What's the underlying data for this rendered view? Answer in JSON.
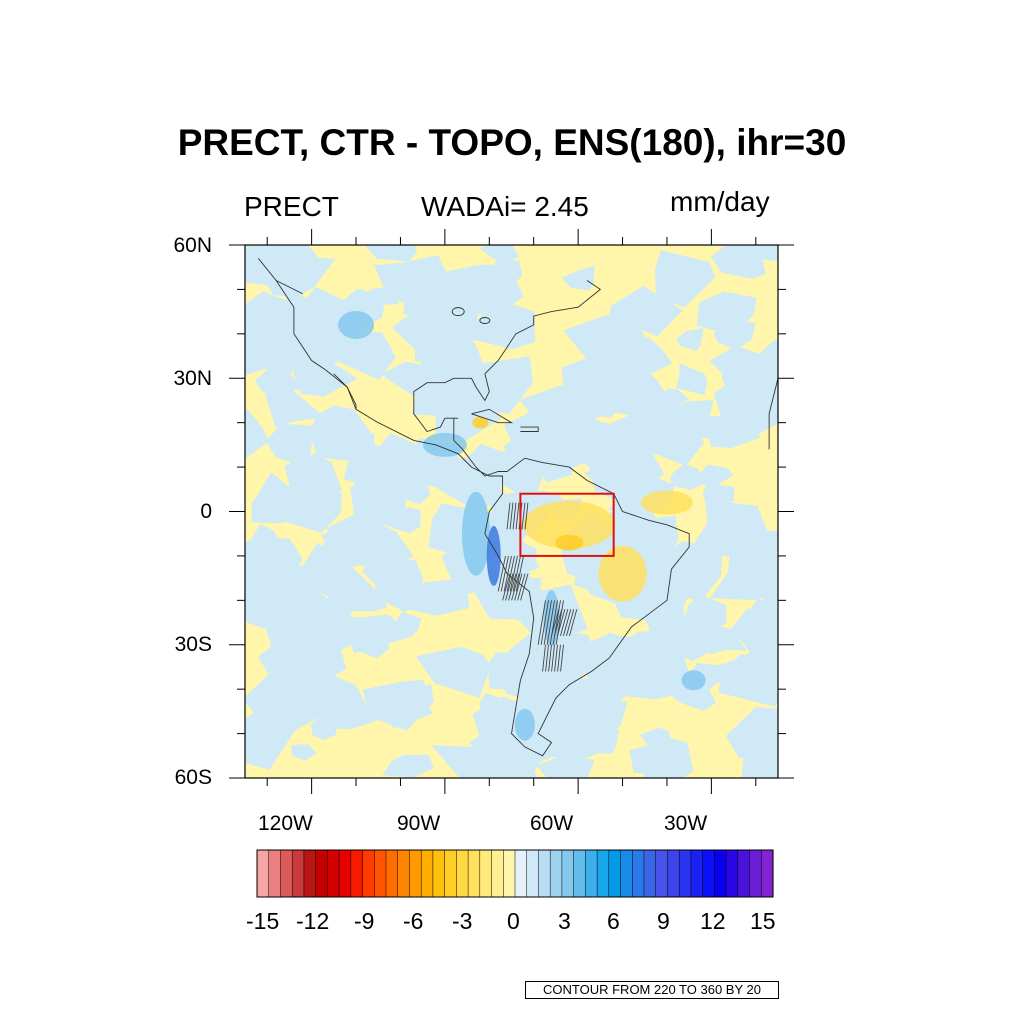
{
  "title": "PRECT, CTR - TOPO, ENS(180), ihr=30",
  "subtitle_left": "PRECT",
  "subtitle_center": "WADAi= 2.45",
  "subtitle_right": "mm/day",
  "lat_labels": [
    "60N",
    "30N",
    "0",
    "30S",
    "60S"
  ],
  "lon_labels": [
    "120W",
    "90W",
    "60W",
    "30W"
  ],
  "colorbar": {
    "labels": [
      "-15",
      "-12",
      "-9",
      "-6",
      "-3",
      "0",
      "3",
      "6",
      "9",
      "12",
      "15"
    ],
    "colors_negative": [
      "#f5a5a5",
      "#ea7f7f",
      "#dc5a5a",
      "#c93a3a",
      "#b81515",
      "#c40000",
      "#d40000",
      "#e60000",
      "#f51a00",
      "#fe3b00",
      "#ff5400",
      "#ff6d00",
      "#ff8400",
      "#ff9a00",
      "#ffad00",
      "#ffbf0f",
      "#ffcd28",
      "#ffd943",
      "#ffe15e",
      "#ffe978",
      "#fff092",
      "#fff6ab"
    ],
    "colors_positive": [
      "#e3f2fb",
      "#cfe9f7",
      "#b7def3",
      "#9ed3f0",
      "#85c8ee",
      "#62bcec",
      "#3cb0ec",
      "#17a5ec",
      "#0499e6",
      "#198ae6",
      "#2b78e8",
      "#3b66ea",
      "#4853ea",
      "#3d44ea",
      "#2b34ee",
      "#1a22f2",
      "#0b10f6",
      "#0a00ee",
      "#2a06e4",
      "#4b12dc",
      "#6a1cd6",
      "#8324d2"
    ]
  },
  "contour_info": "CONTOUR FROM 220 TO 360 BY 20",
  "colors": {
    "positive_light": "#cfe9f7",
    "positive_mid": "#85c8ee",
    "positive_strong": "#3b78e0",
    "negative_light": "#fff6ab",
    "negative_mid": "#ffe15e",
    "negative_strong": "#ffcd28",
    "box": "#e01010"
  },
  "extent": {
    "lon_min": -135,
    "lon_max": -15,
    "lat_min": -60,
    "lat_max": 60
  },
  "highlight_box": {
    "lon_min": -73,
    "lon_max": -52,
    "lat_min": -10,
    "lat_max": 4
  }
}
